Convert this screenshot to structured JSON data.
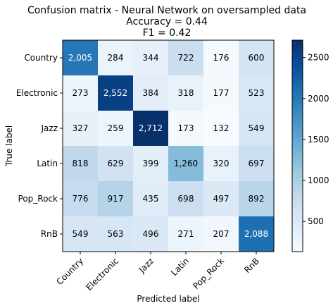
{
  "chart_data": {
    "type": "heatmap",
    "title": [
      "Confusion matrix - Neural Network on oversampled data",
      "Accuracy = 0.44",
      "F1 = 0.42"
    ],
    "xlabel": "Predicted label",
    "ylabel": "True label",
    "x_categories": [
      "Country",
      "Electronic",
      "Jazz",
      "Latin",
      "Pop_Rock",
      "RnB"
    ],
    "y_categories": [
      "Country",
      "Electronic",
      "Jazz",
      "Latin",
      "Pop_Rock",
      "RnB"
    ],
    "values": [
      [
        2005,
        284,
        344,
        722,
        176,
        600
      ],
      [
        273,
        2552,
        384,
        318,
        177,
        523
      ],
      [
        327,
        259,
        2712,
        173,
        132,
        549
      ],
      [
        818,
        629,
        399,
        1260,
        320,
        697
      ],
      [
        776,
        917,
        435,
        698,
        497,
        892
      ],
      [
        549,
        563,
        496,
        271,
        207,
        2088
      ]
    ],
    "cell_labels": [
      [
        "2,005",
        "284",
        "344",
        "722",
        "176",
        "600"
      ],
      [
        "273",
        "2,552",
        "384",
        "318",
        "177",
        "523"
      ],
      [
        "327",
        "259",
        "2,712",
        "173",
        "132",
        "549"
      ],
      [
        "818",
        "629",
        "399",
        "1,260",
        "320",
        "697"
      ],
      [
        "776",
        "917",
        "435",
        "698",
        "497",
        "892"
      ],
      [
        "549",
        "563",
        "496",
        "271",
        "207",
        "2,088"
      ]
    ],
    "colormap": "Blues",
    "color_range": [
      132,
      2712
    ],
    "colorbar_ticks": [
      500,
      1000,
      1500,
      2000,
      2500
    ],
    "colorbar_tick_labels": [
      "500",
      "1000",
      "1500",
      "2000",
      "2500"
    ],
    "grid": false
  }
}
